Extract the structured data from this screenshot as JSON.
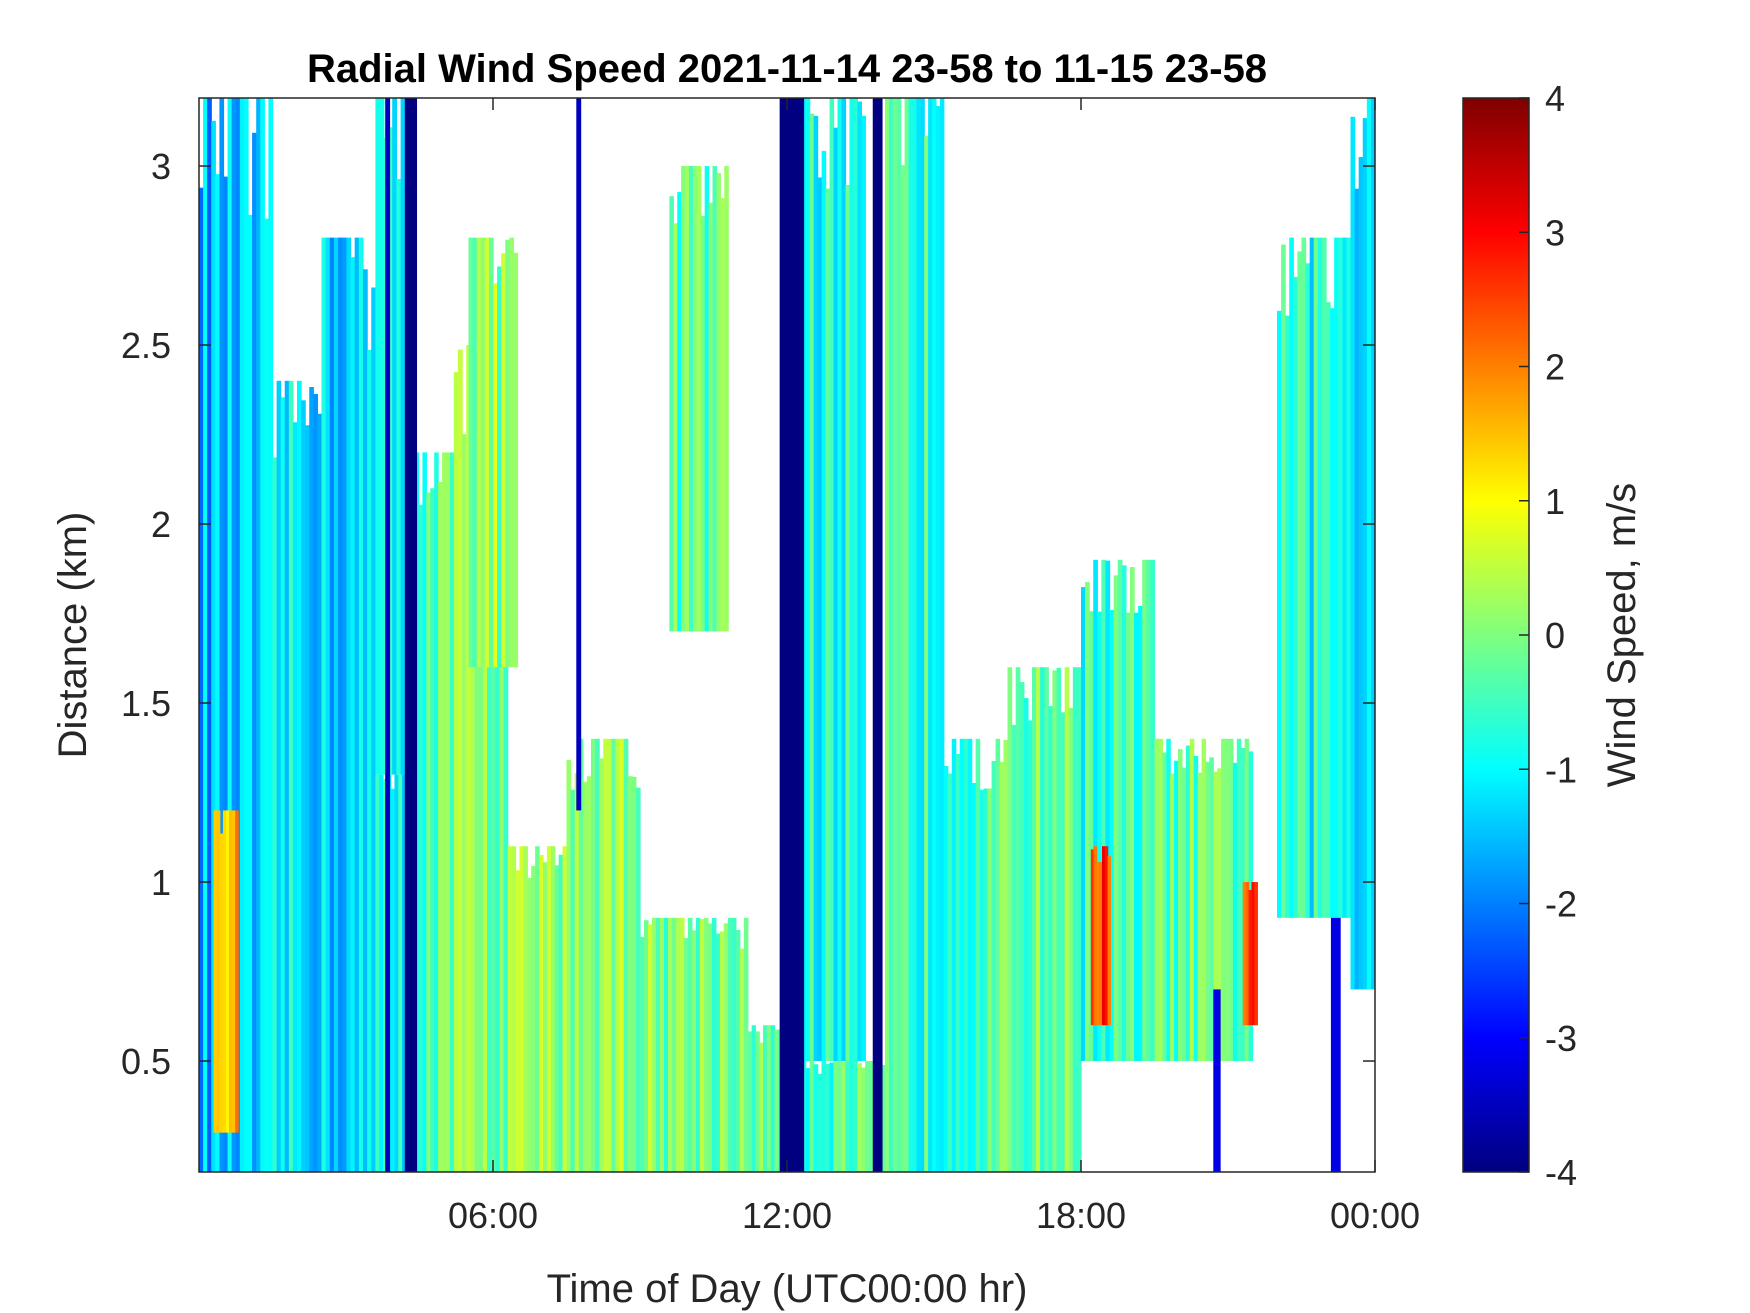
{
  "chart_data": {
    "type": "heatmap",
    "title": "Radial Wind Speed 2021-11-14 23-58 to 11-15 23-58",
    "xlabel": "Time of Day (UTC00:00 hr)",
    "ylabel": "Distance (km)",
    "colorbar_label": "Wind Speed, m/s",
    "colormap": "jet",
    "x_unit": "hours",
    "xlim": [
      0,
      24
    ],
    "ylim": [
      0.19,
      3.19
    ],
    "clim": [
      -4,
      4
    ],
    "x_ticks": [
      {
        "value": 6,
        "label": "06:00"
      },
      {
        "value": 12,
        "label": "12:00"
      },
      {
        "value": 18,
        "label": "18:00"
      },
      {
        "value": 24,
        "label": "00:00"
      }
    ],
    "y_ticks": [
      {
        "value": 0.5,
        "label": "0.5"
      },
      {
        "value": 1,
        "label": "1"
      },
      {
        "value": 1.5,
        "label": "1.5"
      },
      {
        "value": 2,
        "label": "2"
      },
      {
        "value": 2.5,
        "label": "2.5"
      },
      {
        "value": 3,
        "label": "3"
      }
    ],
    "colorbar_ticks": [
      {
        "value": 4,
        "label": "4"
      },
      {
        "value": 3,
        "label": "3"
      },
      {
        "value": 2,
        "label": "2"
      },
      {
        "value": 1,
        "label": "1"
      },
      {
        "value": 0,
        "label": "0"
      },
      {
        "value": -1,
        "label": "-1"
      },
      {
        "value": -2,
        "label": "-2"
      },
      {
        "value": -3,
        "label": "-3"
      },
      {
        "value": -4,
        "label": "-4"
      }
    ],
    "regions": [
      {
        "x": [
          0.0,
          1.5
        ],
        "y": [
          0.19,
          3.19
        ],
        "v": -1.6
      },
      {
        "x": [
          1.5,
          2.5
        ],
        "y": [
          0.19,
          2.4
        ],
        "v": -1.2
      },
      {
        "x": [
          2.5,
          3.6
        ],
        "y": [
          0.19,
          2.8
        ],
        "v": -1.4
      },
      {
        "x": [
          3.6,
          4.3
        ],
        "y": [
          0.19,
          1.3
        ],
        "v": -0.8
      },
      {
        "x": [
          3.6,
          4.2
        ],
        "y": [
          1.3,
          3.19
        ],
        "v": -1.1
      },
      {
        "x": [
          4.4,
          5.2
        ],
        "y": [
          0.19,
          2.2
        ],
        "v": -0.3
      },
      {
        "x": [
          5.2,
          6.3
        ],
        "y": [
          0.19,
          2.5
        ],
        "v": 0.0
      },
      {
        "x": [
          5.5,
          6.5
        ],
        "y": [
          1.6,
          2.8
        ],
        "v": 0.1
      },
      {
        "x": [
          6.3,
          7.5
        ],
        "y": [
          0.19,
          1.1
        ],
        "v": 0.1
      },
      {
        "x": [
          7.5,
          9.0
        ],
        "y": [
          0.19,
          1.4
        ],
        "v": 0.2
      },
      {
        "x": [
          9.0,
          11.2
        ],
        "y": [
          0.19,
          0.9
        ],
        "v": 0.0
      },
      {
        "x": [
          9.6,
          10.8
        ],
        "y": [
          1.7,
          3.0
        ],
        "v": -0.3
      },
      {
        "x": [
          11.2,
          11.9
        ],
        "y": [
          0.19,
          0.6
        ],
        "v": -0.2
      },
      {
        "x": [
          12.3,
          13.6
        ],
        "y": [
          0.5,
          3.19
        ],
        "v": -0.8
      },
      {
        "x": [
          12.3,
          14.0
        ],
        "y": [
          0.19,
          0.5
        ],
        "v": -0.4
      },
      {
        "x": [
          14.0,
          15.2
        ],
        "y": [
          0.19,
          3.19
        ],
        "v": -0.6
      },
      {
        "x": [
          15.2,
          16.5
        ],
        "y": [
          0.19,
          1.4
        ],
        "v": -0.4
      },
      {
        "x": [
          16.5,
          18.0
        ],
        "y": [
          0.19,
          1.6
        ],
        "v": -0.2
      },
      {
        "x": [
          18.0,
          19.5
        ],
        "y": [
          0.5,
          1.9
        ],
        "v": -0.6
      },
      {
        "x": [
          19.5,
          21.5
        ],
        "y": [
          0.5,
          1.4
        ],
        "v": -0.3
      },
      {
        "x": [
          22.0,
          23.5
        ],
        "y": [
          0.9,
          2.8
        ],
        "v": -0.8
      },
      {
        "x": [
          23.5,
          24.0
        ],
        "y": [
          0.7,
          3.19
        ],
        "v": -1.0
      }
    ],
    "strong_bands": [
      {
        "x": [
          4.2,
          4.45
        ],
        "y": [
          0.19,
          3.19
        ],
        "v": -4
      },
      {
        "x": [
          3.8,
          3.9
        ],
        "y": [
          0.19,
          3.19
        ],
        "v": -3.5
      },
      {
        "x": [
          7.7,
          7.8
        ],
        "y": [
          1.2,
          3.19
        ],
        "v": -3.5
      },
      {
        "x": [
          11.85,
          12.35
        ],
        "y": [
          0.19,
          3.19
        ],
        "v": -4
      },
      {
        "x": [
          13.75,
          13.95
        ],
        "y": [
          0.19,
          3.19
        ],
        "v": -4
      },
      {
        "x": [
          20.7,
          20.85
        ],
        "y": [
          0.19,
          0.7
        ],
        "v": -3.2
      },
      {
        "x": [
          23.1,
          23.3
        ],
        "y": [
          0.19,
          0.9
        ],
        "v": -3.2
      }
    ],
    "positive_spots": [
      {
        "x": [
          0.3,
          0.8
        ],
        "y": [
          0.3,
          1.2
        ],
        "v": 1.5
      },
      {
        "x": [
          18.2,
          18.6
        ],
        "y": [
          0.6,
          1.1
        ],
        "v": 2.5
      },
      {
        "x": [
          21.3,
          21.6
        ],
        "y": [
          0.6,
          1.0
        ],
        "v": 2.5
      }
    ]
  }
}
